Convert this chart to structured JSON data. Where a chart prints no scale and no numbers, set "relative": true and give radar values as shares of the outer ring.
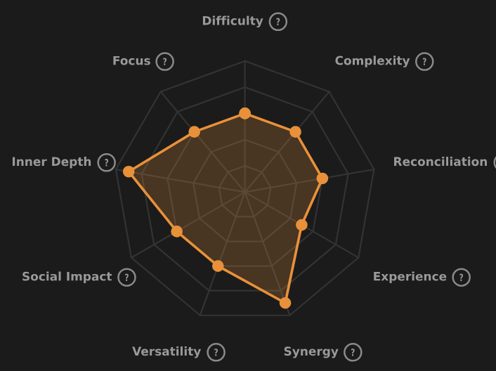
{
  "chart_data": {
    "type": "radar",
    "relative": true,
    "categories": [
      "Difficulty",
      "Complexity",
      "Reconciliation",
      "Experience",
      "Synergy",
      "Versatility",
      "Social Impact",
      "Inner Depth",
      "Focus"
    ],
    "series": [
      {
        "color": "#e8913a",
        "values": [
          0.6,
          0.6,
          0.6,
          0.5,
          0.9,
          0.6,
          0.6,
          0.9,
          0.6
        ]
      }
    ],
    "marker": "circle",
    "grid": true,
    "legend": false
  }
}
